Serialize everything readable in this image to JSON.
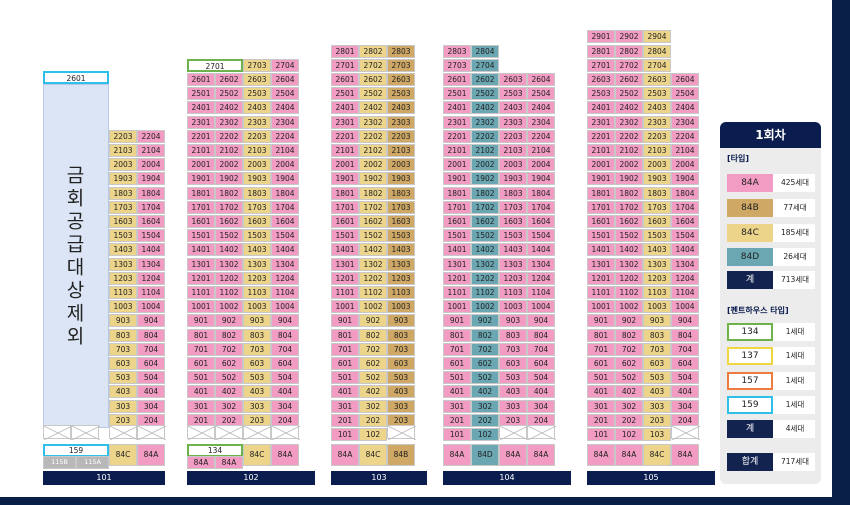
{
  "excluded_label": "금회공급대상제외",
  "buildings": [
    {
      "id": "101",
      "label": "101",
      "special_top": "2601",
      "footer": {
        "special": "159",
        "sub": [
          "115B",
          "115A"
        ],
        "types": [
          "84C",
          "84A"
        ]
      }
    },
    {
      "id": "102",
      "label": "102",
      "special_top": "2701",
      "top_row": [
        "2703",
        "2704"
      ],
      "footer": {
        "special": "134",
        "sub": [
          "84A",
          "84A"
        ],
        "types": [
          "84C",
          "84A"
        ]
      }
    },
    {
      "id": "103",
      "label": "103",
      "footer": {
        "types": [
          "84A",
          "84C",
          "84B"
        ]
      }
    },
    {
      "id": "104",
      "label": "104",
      "footer": {
        "types": [
          "84A",
          "84D",
          "84A",
          "84A"
        ]
      }
    },
    {
      "id": "105",
      "label": "105",
      "footer": {
        "types": [
          "84A",
          "84A",
          "84C",
          "84A"
        ]
      }
    }
  ],
  "legend": {
    "title": "1회차",
    "type_section": "[타입]",
    "types": [
      {
        "name": "84A",
        "count": "425세대"
      },
      {
        "name": "84B",
        "count": "77세대"
      },
      {
        "name": "84C",
        "count": "185세대"
      },
      {
        "name": "84D",
        "count": "26세대"
      },
      {
        "name": "계",
        "count": "713세대"
      }
    ],
    "penthouse_section": "[펜트하우스 타입]",
    "penthouses": [
      {
        "name": "134",
        "count": "1세대"
      },
      {
        "name": "137",
        "count": "1세대"
      },
      {
        "name": "157",
        "count": "1세대"
      },
      {
        "name": "159",
        "count": "1세대"
      },
      {
        "name": "계",
        "count": "4세대"
      }
    ],
    "grand_total": {
      "name": "합계",
      "count": "717세대"
    }
  },
  "colors": {
    "84A": "#f29cc3",
    "84B": "#cfa866",
    "84C": "#ecd48b",
    "84D": "#6aa7b2",
    "navy": "#0b1d4e"
  }
}
